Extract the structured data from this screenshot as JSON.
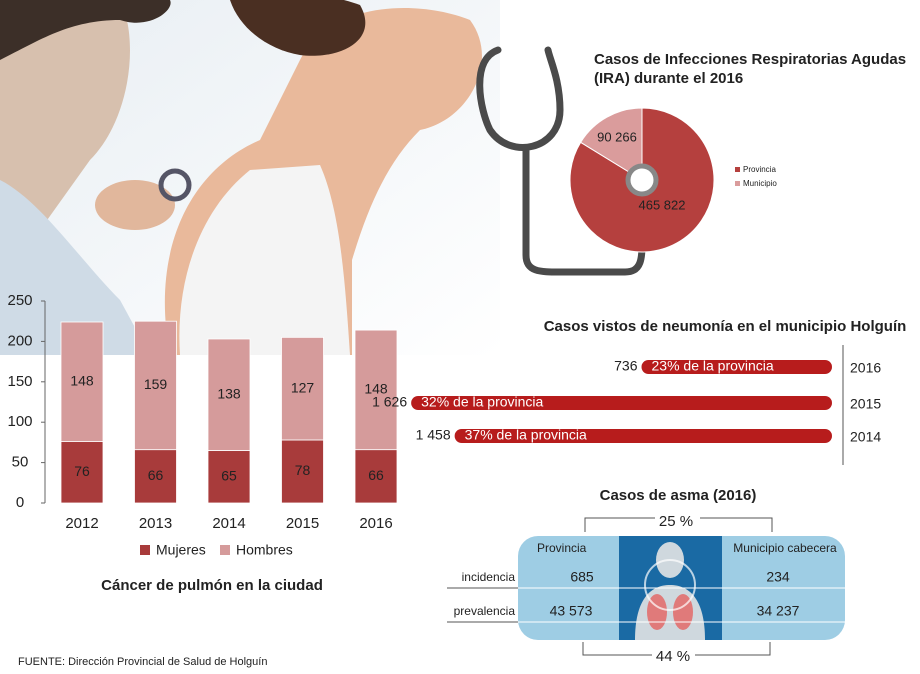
{
  "chart_data": [
    {
      "type": "bar",
      "stacked": true,
      "title": "Cáncer de pulmón en la ciudad",
      "categories": [
        "2012",
        "2013",
        "2014",
        "2015",
        "2016"
      ],
      "series": [
        {
          "name": "Mujeres",
          "color": "#a83b3b",
          "values": [
            76,
            66,
            65,
            78,
            66
          ]
        },
        {
          "name": "Hombres",
          "color": "#d59b9b",
          "values": [
            148,
            159,
            138,
            127,
            148
          ]
        }
      ],
      "ylim": [
        0,
        250
      ],
      "yticks": [
        0,
        50,
        100,
        150,
        200,
        250
      ],
      "grid": false
    },
    {
      "type": "pie",
      "title": "Casos de Infecciones Respiratorias Agudas (IRA) durante el 2016",
      "categories": [
        "Provincia",
        "Municipio"
      ],
      "values": [
        465822,
        90266
      ],
      "value_labels": [
        "465 822",
        "90 266"
      ],
      "colors": [
        "#b5403e",
        "#da9c9c"
      ]
    },
    {
      "type": "barh",
      "title": "Casos vistos de neumonía en el municipio Holguín",
      "categories": [
        "2016",
        "2015",
        "2014"
      ],
      "values": [
        736,
        1626,
        1458
      ],
      "value_labels": [
        "736",
        "1 626",
        "1 458"
      ],
      "annotations": [
        "23% de la provincia",
        "32% de la provincia",
        "37% de la provincia"
      ],
      "xlim": [
        0,
        1700
      ],
      "color": "#b71c1c"
    }
  ],
  "asthma": {
    "title": "Casos de asma (2016)",
    "columns": [
      "Provincia",
      "Municipio cabecera"
    ],
    "rows": [
      [
        "incidencia",
        "685",
        "234"
      ],
      [
        "prevalencia",
        "43 573",
        "34 237"
      ]
    ],
    "shares": [
      "25 %",
      "44 %"
    ]
  },
  "source": "FUENTE: Dirección Provincial de Salud de Holguín"
}
